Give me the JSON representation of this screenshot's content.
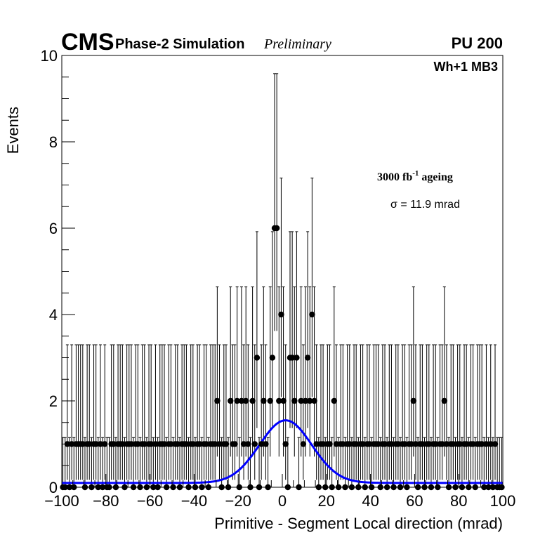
{
  "header": {
    "experiment": "CMS",
    "subtitle": "Phase-2 Simulation",
    "status": "Preliminary",
    "pileup": "PU 200",
    "region": "Wh+1 MB3"
  },
  "annotations": {
    "ageing_value": "3000 fb",
    "ageing_exponent": "-1",
    "ageing_suffix": " ageing",
    "sigma_label": "σ = 11.9 mrad"
  },
  "chart_data": {
    "type": "scatter",
    "xlabel": "Primitive - Segment Local direction (mrad)",
    "ylabel": "Events",
    "xlim": [
      -100,
      100
    ],
    "ylim": [
      0,
      10
    ],
    "x_major_ticks": [
      -100,
      -80,
      -60,
      -40,
      -20,
      0,
      20,
      40,
      60,
      80,
      100
    ],
    "x_tick_labels": [
      "−100",
      "−80",
      "−60",
      "−40",
      "−20",
      "0",
      "20",
      "40",
      "60",
      "80",
      "100"
    ],
    "y_major_ticks": [
      0,
      2,
      4,
      6,
      8,
      10
    ],
    "y_tick_labels": [
      "0",
      "2",
      "4",
      "6",
      "8",
      "10"
    ],
    "grid": false,
    "bin_width": 1,
    "points": [
      [
        -99.5,
        0
      ],
      [
        -98.5,
        0
      ],
      [
        -97.5,
        1
      ],
      [
        -96.5,
        0
      ],
      [
        -95.5,
        1
      ],
      [
        -94.5,
        0
      ],
      [
        -93.5,
        1
      ],
      [
        -92.5,
        1
      ],
      [
        -91.5,
        1
      ],
      [
        -90.5,
        1
      ],
      [
        -89.5,
        0
      ],
      [
        -88.5,
        1
      ],
      [
        -87.5,
        1
      ],
      [
        -86.5,
        0
      ],
      [
        -85.5,
        1
      ],
      [
        -84.5,
        1
      ],
      [
        -83.5,
        0
      ],
      [
        -82.5,
        1
      ],
      [
        -81.5,
        0
      ],
      [
        -80.5,
        1
      ],
      [
        -79.5,
        0
      ],
      [
        -78.5,
        0
      ],
      [
        -77.5,
        1
      ],
      [
        -76.5,
        1
      ],
      [
        -75.5,
        0
      ],
      [
        -74.5,
        1
      ],
      [
        -73.5,
        1
      ],
      [
        -72.5,
        1
      ],
      [
        -71.5,
        0
      ],
      [
        -70.5,
        1
      ],
      [
        -69.5,
        1
      ],
      [
        -68.5,
        1
      ],
      [
        -67.5,
        0
      ],
      [
        -66.5,
        1
      ],
      [
        -65.5,
        1
      ],
      [
        -64.5,
        0
      ],
      [
        -63.5,
        1
      ],
      [
        -62.5,
        1
      ],
      [
        -61.5,
        0
      ],
      [
        -60.5,
        1
      ],
      [
        -59.5,
        1
      ],
      [
        -58.5,
        0
      ],
      [
        -57.5,
        1
      ],
      [
        -56.5,
        0
      ],
      [
        -55.5,
        1
      ],
      [
        -54.5,
        1
      ],
      [
        -53.5,
        1
      ],
      [
        -52.5,
        0
      ],
      [
        -51.5,
        1
      ],
      [
        -50.5,
        1
      ],
      [
        -49.5,
        0
      ],
      [
        -48.5,
        1
      ],
      [
        -47.5,
        1
      ],
      [
        -46.5,
        0
      ],
      [
        -45.5,
        1
      ],
      [
        -44.5,
        1
      ],
      [
        -43.5,
        1
      ],
      [
        -42.5,
        0
      ],
      [
        -41.5,
        1
      ],
      [
        -40.5,
        1
      ],
      [
        -39.5,
        0
      ],
      [
        -38.5,
        1
      ],
      [
        -37.5,
        1
      ],
      [
        -36.5,
        0
      ],
      [
        -35.5,
        1
      ],
      [
        -34.5,
        1
      ],
      [
        -33.5,
        0
      ],
      [
        -32.5,
        1
      ],
      [
        -31.5,
        1
      ],
      [
        -30.5,
        1
      ],
      [
        -29.5,
        2
      ],
      [
        -28.5,
        1
      ],
      [
        -27.5,
        0
      ],
      [
        -26.5,
        1
      ],
      [
        -25.5,
        1
      ],
      [
        -24.5,
        0
      ],
      [
        -23.5,
        2
      ],
      [
        -22.5,
        1
      ],
      [
        -21.5,
        1
      ],
      [
        -20.5,
        2
      ],
      [
        -19.5,
        0
      ],
      [
        -18.5,
        2
      ],
      [
        -17.5,
        1
      ],
      [
        -16.5,
        2
      ],
      [
        -15.5,
        1
      ],
      [
        -14.5,
        0
      ],
      [
        -13.5,
        2
      ],
      [
        -12.5,
        1
      ],
      [
        -11.5,
        3
      ],
      [
        -10.5,
        0
      ],
      [
        -9.5,
        1
      ],
      [
        -8.5,
        2
      ],
      [
        -7.5,
        1
      ],
      [
        -6.5,
        0
      ],
      [
        -5.5,
        2
      ],
      [
        -4.5,
        3
      ],
      [
        -3.5,
        6
      ],
      [
        -2.5,
        6
      ],
      [
        -1.5,
        2
      ],
      [
        -0.5,
        4
      ],
      [
        0.5,
        2
      ],
      [
        1.5,
        1
      ],
      [
        2.5,
        0
      ],
      [
        3.5,
        3
      ],
      [
        4.5,
        3
      ],
      [
        5.5,
        2
      ],
      [
        6.5,
        3
      ],
      [
        7.5,
        0
      ],
      [
        8.5,
        2
      ],
      [
        9.5,
        1
      ],
      [
        10.5,
        2
      ],
      [
        11.5,
        3
      ],
      [
        12.5,
        2
      ],
      [
        13.5,
        4
      ],
      [
        14.5,
        2
      ],
      [
        15.5,
        1
      ],
      [
        16.5,
        0
      ],
      [
        17.5,
        1
      ],
      [
        18.5,
        1
      ],
      [
        19.5,
        0
      ],
      [
        20.5,
        1
      ],
      [
        21.5,
        1
      ],
      [
        22.5,
        0
      ],
      [
        23.5,
        2
      ],
      [
        24.5,
        1
      ],
      [
        25.5,
        0
      ],
      [
        26.5,
        1
      ],
      [
        27.5,
        1
      ],
      [
        28.5,
        0
      ],
      [
        29.5,
        1
      ],
      [
        30.5,
        1
      ],
      [
        31.5,
        0
      ],
      [
        32.5,
        1
      ],
      [
        33.5,
        1
      ],
      [
        34.5,
        0
      ],
      [
        35.5,
        1
      ],
      [
        36.5,
        1
      ],
      [
        37.5,
        0
      ],
      [
        38.5,
        1
      ],
      [
        39.5,
        1
      ],
      [
        40.5,
        0
      ],
      [
        41.5,
        1
      ],
      [
        42.5,
        1
      ],
      [
        43.5,
        1
      ],
      [
        44.5,
        0
      ],
      [
        45.5,
        1
      ],
      [
        46.5,
        1
      ],
      [
        47.5,
        0
      ],
      [
        48.5,
        1
      ],
      [
        49.5,
        1
      ],
      [
        50.5,
        0
      ],
      [
        51.5,
        1
      ],
      [
        52.5,
        1
      ],
      [
        53.5,
        0
      ],
      [
        54.5,
        1
      ],
      [
        55.5,
        1
      ],
      [
        56.5,
        0
      ],
      [
        57.5,
        1
      ],
      [
        58.5,
        1
      ],
      [
        59.5,
        2
      ],
      [
        60.5,
        1
      ],
      [
        61.5,
        0
      ],
      [
        62.5,
        1
      ],
      [
        63.5,
        1
      ],
      [
        64.5,
        0
      ],
      [
        65.5,
        1
      ],
      [
        66.5,
        1
      ],
      [
        67.5,
        0
      ],
      [
        68.5,
        1
      ],
      [
        69.5,
        1
      ],
      [
        70.5,
        0
      ],
      [
        71.5,
        1
      ],
      [
        72.5,
        1
      ],
      [
        73.5,
        2
      ],
      [
        74.5,
        1
      ],
      [
        75.5,
        0
      ],
      [
        76.5,
        1
      ],
      [
        77.5,
        1
      ],
      [
        78.5,
        0
      ],
      [
        79.5,
        1
      ],
      [
        80.5,
        1
      ],
      [
        81.5,
        0
      ],
      [
        82.5,
        1
      ],
      [
        83.5,
        1
      ],
      [
        84.5,
        0
      ],
      [
        85.5,
        1
      ],
      [
        86.5,
        1
      ],
      [
        87.5,
        0
      ],
      [
        88.5,
        1
      ],
      [
        89.5,
        1
      ],
      [
        90.5,
        1
      ],
      [
        91.5,
        0
      ],
      [
        92.5,
        1
      ],
      [
        93.5,
        0
      ],
      [
        94.5,
        1
      ],
      [
        95.5,
        0
      ],
      [
        96.5,
        1
      ],
      [
        97.5,
        0
      ],
      [
        98.5,
        0
      ],
      [
        99.5,
        0
      ]
    ],
    "fit": {
      "function": "gaussian",
      "mean": 1.5,
      "sigma": 11.9,
      "amplitude": 1.45,
      "baseline": 0.1
    },
    "colors": {
      "points": "#000000",
      "fit_line": "#0000ff"
    }
  }
}
